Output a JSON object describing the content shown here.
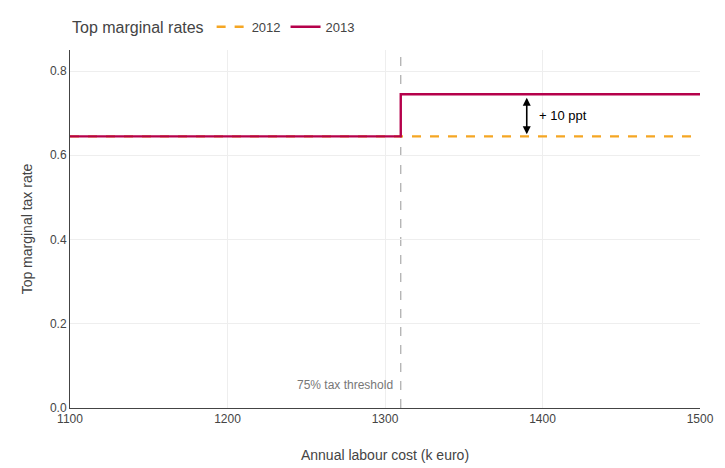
{
  "chart_data": {
    "type": "line",
    "xlabel": "Annual labour cost (k euro)",
    "ylabel": "Top marginal tax rate",
    "series": [
      {
        "name": "2012",
        "color": "#F5A623",
        "line_style": "dashed",
        "x": [
          1100,
          1500
        ],
        "values": [
          0.645,
          0.645
        ]
      },
      {
        "name": "2013",
        "color": "#B5004B",
        "line_style": "solid",
        "x": [
          1100,
          1310,
          1310,
          1500
        ],
        "values": [
          0.645,
          0.645,
          0.745,
          0.745
        ]
      }
    ],
    "xlim": [
      1100,
      1500
    ],
    "ylim": [
      0.0,
      0.85
    ],
    "xticks": [
      1100,
      1200,
      1300,
      1400,
      1500
    ],
    "yticks": [
      {
        "value": 0.0,
        "label": "0.0"
      },
      0.2,
      0.4,
      0.6,
      0.8
    ],
    "grid": true,
    "legend": "upper left",
    "legend_title": "Top marginal rates",
    "vlines": [
      {
        "x": 1310,
        "label": "75% tax threshold",
        "color": "#aaaaaa",
        "line_style": "dashed"
      }
    ],
    "annotations": [
      {
        "text": "+ 10 ppt",
        "x": 1390,
        "y": [
          0.645,
          0.745
        ]
      }
    ]
  }
}
